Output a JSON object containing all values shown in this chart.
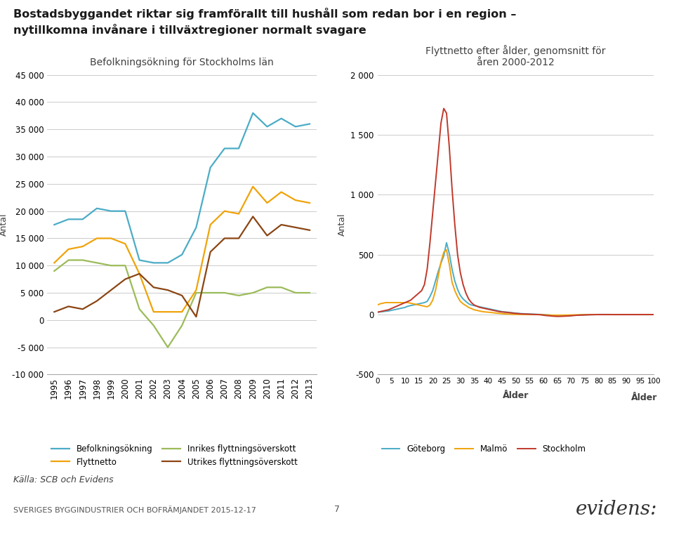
{
  "title_line1": "Bostadsbyggandet riktar sig framförallt till hushåll som redan bor i en region –",
  "title_line2": "nytillkomna invånare i tillväxtregioner normalt svagare",
  "left_chart": {
    "title": "Befolkningsökning för Stockholms län",
    "ylabel": "Antal",
    "ylim": [
      -10000,
      45000
    ],
    "yticks": [
      -10000,
      -5000,
      0,
      5000,
      10000,
      15000,
      20000,
      25000,
      30000,
      35000,
      40000,
      45000
    ],
    "ytick_labels": [
      "-10 000",
      "-5 000",
      "0",
      "5 000",
      "10 000",
      "15 000",
      "20 000",
      "25 000",
      "30 000",
      "35 000",
      "40 000",
      "45 000"
    ],
    "years": [
      1995,
      1996,
      1997,
      1998,
      1999,
      2000,
      2001,
      2002,
      2003,
      2004,
      2005,
      2006,
      2007,
      2008,
      2009,
      2010,
      2011,
      2012,
      2013
    ],
    "befolkning": [
      17500,
      18500,
      18500,
      20500,
      20000,
      20000,
      11000,
      10500,
      10500,
      12000,
      17000,
      28000,
      31500,
      31500,
      38000,
      35500,
      37000,
      35500,
      36000
    ],
    "flyttnetto": [
      10500,
      13000,
      13500,
      15000,
      15000,
      14000,
      8500,
      1500,
      1500,
      1500,
      5500,
      17500,
      20000,
      19500,
      24500,
      21500,
      23500,
      22000,
      21500
    ],
    "inrikes": [
      9000,
      11000,
      11000,
      10500,
      10000,
      10000,
      2000,
      -1000,
      -5000,
      -1000,
      5000,
      5000,
      5000,
      4500,
      5000,
      6000,
      6000,
      5000,
      5000
    ],
    "utrikes": [
      1500,
      2500,
      2000,
      3500,
      5500,
      7500,
      8500,
      6000,
      5500,
      4500,
      600,
      12500,
      15000,
      15000,
      19000,
      15500,
      17500,
      17000,
      16500
    ],
    "colors": {
      "befolkning": "#4bacc6",
      "flyttnetto": "#f0a30a",
      "inrikes": "#9bbb59",
      "utrikes": "#8b4513"
    },
    "legend_labels": [
      "Befolkningsökning",
      "Flyttnetto",
      "Inrikes flyttningsöverskott",
      "Utrikes flyttningsöverskott"
    ]
  },
  "right_chart": {
    "title": "Flyttnetto efter ålder, genomsnitt för\nåren 2000-2012",
    "ylabel": "Antal",
    "xlabel": "Ålder",
    "ylim": [
      -500,
      2000
    ],
    "yticks": [
      -500,
      0,
      500,
      1000,
      1500,
      2000
    ],
    "ytick_labels": [
      "-500",
      "0",
      "500",
      "1 000",
      "1 500",
      "2 000"
    ],
    "ages": [
      0,
      1,
      2,
      3,
      4,
      5,
      6,
      7,
      8,
      9,
      10,
      11,
      12,
      13,
      14,
      15,
      16,
      17,
      18,
      19,
      20,
      21,
      22,
      23,
      24,
      25,
      26,
      27,
      28,
      29,
      30,
      31,
      32,
      33,
      34,
      35,
      36,
      37,
      38,
      39,
      40,
      41,
      42,
      43,
      44,
      45,
      46,
      47,
      48,
      49,
      50,
      51,
      52,
      53,
      54,
      55,
      56,
      57,
      58,
      59,
      60,
      61,
      62,
      63,
      64,
      65,
      66,
      67,
      68,
      69,
      70,
      71,
      72,
      73,
      74,
      75,
      76,
      77,
      78,
      79,
      80,
      81,
      82,
      83,
      84,
      85,
      86,
      87,
      88,
      89,
      90,
      91,
      92,
      93,
      94,
      95,
      96,
      97,
      98,
      99,
      100
    ],
    "goteborg": [
      20,
      22,
      25,
      28,
      30,
      35,
      40,
      45,
      50,
      55,
      60,
      70,
      75,
      80,
      85,
      90,
      95,
      100,
      110,
      150,
      200,
      280,
      360,
      430,
      490,
      600,
      510,
      380,
      280,
      210,
      160,
      130,
      110,
      90,
      80,
      75,
      70,
      65,
      60,
      55,
      50,
      45,
      40,
      35,
      30,
      25,
      22,
      20,
      18,
      15,
      12,
      10,
      8,
      7,
      6,
      5,
      4,
      3,
      2,
      1,
      0,
      -2,
      -3,
      -5,
      -6,
      -7,
      -8,
      -9,
      -10,
      -10,
      -8,
      -6,
      -5,
      -4,
      -3,
      -2,
      -1,
      -1,
      0,
      0,
      1,
      1,
      1,
      1,
      1,
      0,
      0,
      0,
      0,
      0,
      0,
      0,
      0,
      0,
      0,
      0,
      0,
      0,
      0,
      0,
      0
    ],
    "malmo": [
      80,
      90,
      95,
      100,
      100,
      100,
      100,
      100,
      100,
      100,
      100,
      100,
      95,
      90,
      85,
      80,
      75,
      70,
      65,
      80,
      120,
      200,
      320,
      440,
      520,
      540,
      420,
      270,
      200,
      150,
      110,
      90,
      75,
      60,
      50,
      40,
      35,
      30,
      25,
      22,
      20,
      18,
      15,
      12,
      10,
      8,
      6,
      5,
      4,
      3,
      2,
      2,
      1,
      1,
      1,
      0,
      0,
      0,
      0,
      -1,
      -2,
      -3,
      -4,
      -5,
      -5,
      -5,
      -5,
      -5,
      -4,
      -4,
      -3,
      -3,
      -2,
      -2,
      -1,
      -1,
      -1,
      0,
      0,
      0,
      0,
      0,
      0,
      0,
      0,
      0,
      0,
      0,
      0,
      0,
      0,
      0,
      0,
      0,
      0,
      0,
      0,
      0,
      0,
      0,
      0
    ],
    "stockholm": [
      20,
      25,
      30,
      35,
      40,
      50,
      60,
      70,
      80,
      90,
      100,
      110,
      120,
      140,
      160,
      180,
      200,
      250,
      380,
      600,
      850,
      1100,
      1350,
      1600,
      1720,
      1680,
      1400,
      1050,
      750,
      500,
      350,
      250,
      180,
      130,
      100,
      80,
      70,
      60,
      55,
      50,
      45,
      40,
      35,
      30,
      25,
      22,
      20,
      18,
      15,
      12,
      10,
      8,
      6,
      5,
      4,
      3,
      2,
      1,
      0,
      -1,
      -5,
      -8,
      -10,
      -12,
      -14,
      -15,
      -15,
      -14,
      -13,
      -12,
      -10,
      -8,
      -6,
      -5,
      -4,
      -3,
      -2,
      -1,
      -1,
      0,
      0,
      0,
      0,
      0,
      0,
      0,
      0,
      0,
      0,
      0,
      0,
      0,
      0,
      0,
      0,
      0,
      0,
      0,
      0,
      0,
      0
    ],
    "colors": {
      "goteborg": "#4bacc6",
      "malmo": "#f0a30a",
      "stockholm": "#c0392b"
    },
    "legend_labels": [
      "Göteborg",
      "Malmö",
      "Stockholm"
    ]
  },
  "footer": "Källa: SCB och Evidens",
  "footer2": "SVERIGES BYGGINDUSTRIER OCH BOFRÄMJANDET 2015-12-17",
  "page_num": "7",
  "bg_color": "#ffffff",
  "grid_color": "#cccccc",
  "text_color": "#404040"
}
